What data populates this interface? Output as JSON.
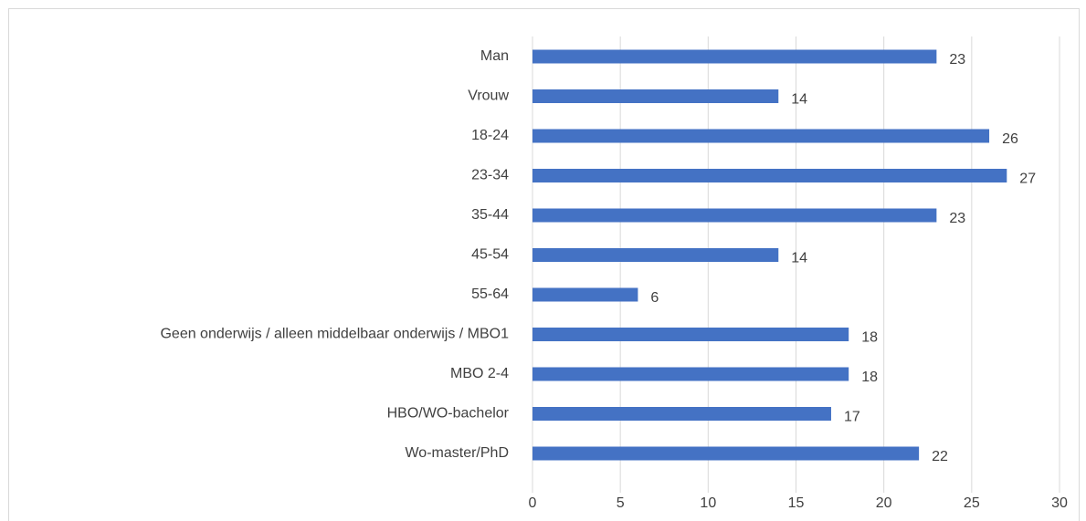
{
  "chart_data": {
    "type": "barh",
    "categories": [
      "Man",
      "Vrouw",
      "18-24",
      "23-34",
      "35-44",
      "45-54",
      "55-64",
      "Geen onderwijs / alleen middelbaar onderwijs / MBO1",
      "MBO 2-4",
      "HBO/WO-bachelor",
      "Wo-master/PhD"
    ],
    "values": [
      23,
      14,
      26,
      27,
      23,
      14,
      6,
      18,
      18,
      17,
      22
    ],
    "color": "#4472c4",
    "xlim": [
      0,
      30
    ],
    "xticks": [
      0,
      5,
      10,
      15,
      20,
      25,
      30
    ],
    "grid": true
  }
}
